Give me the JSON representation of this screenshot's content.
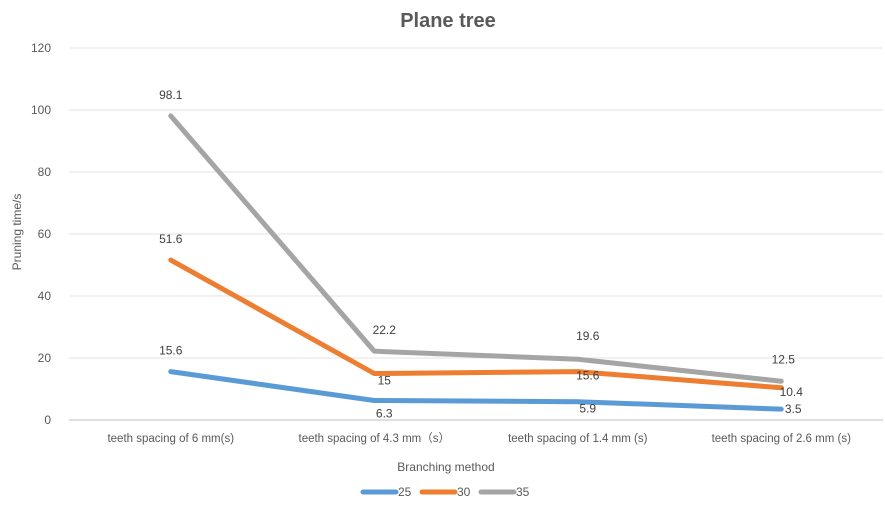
{
  "chart_data": {
    "type": "line",
    "title": "Plane tree",
    "xlabel": "Branching method",
    "ylabel": "Pruning time/s",
    "categories": [
      "teeth spacing of 6 mm(s)",
      "teeth spacing of 4.3 mm（s）",
      "teeth spacing of 1.4 mm (s)",
      "teeth spacing of 2.6 mm (s)"
    ],
    "series": [
      {
        "name": "25",
        "values": [
          15.6,
          6.3,
          5.9,
          3.5
        ],
        "color": "#5b9bd5"
      },
      {
        "name": "30",
        "values": [
          51.6,
          15,
          15.6,
          10.4
        ],
        "color": "#ed7d31"
      },
      {
        "name": "35",
        "values": [
          98.1,
          22.2,
          19.6,
          12.5
        ],
        "color": "#a5a5a5"
      }
    ],
    "ylim": [
      0,
      120
    ],
    "yticks": [
      0,
      20,
      40,
      60,
      80,
      100,
      120
    ],
    "grid": true,
    "legend": "bottom"
  }
}
